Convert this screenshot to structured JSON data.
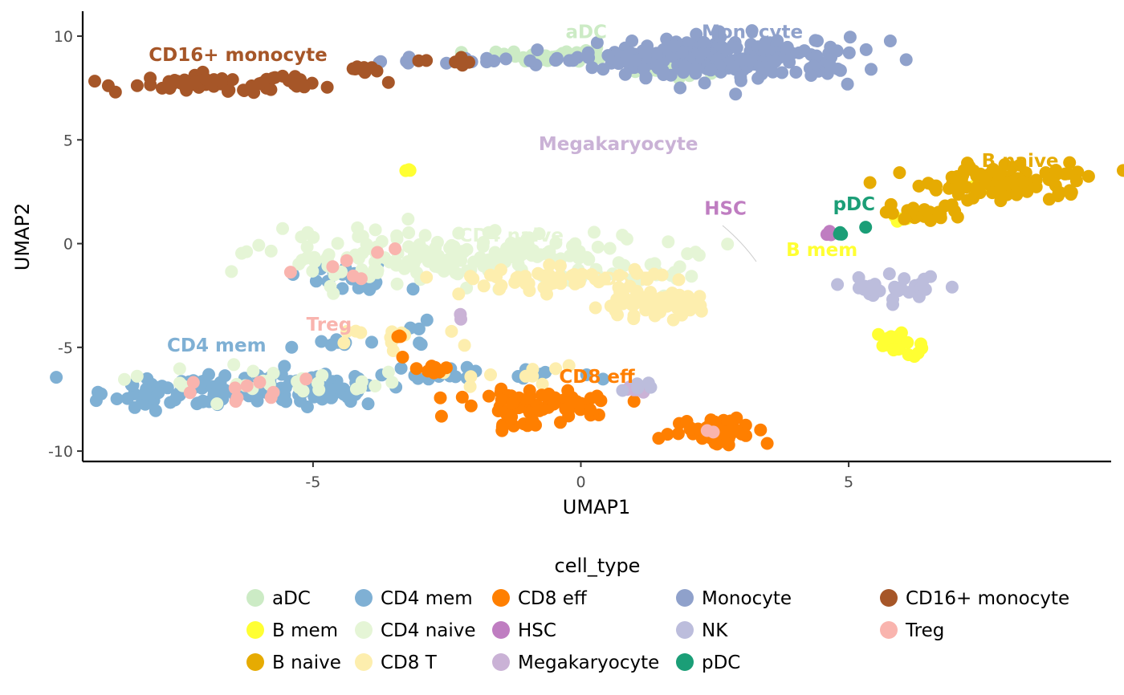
{
  "chart_data": {
    "type": "scatter",
    "title": "",
    "xlabel": "UMAP1",
    "ylabel": "UMAP2",
    "xlim": [
      -9.3,
      9.9
    ],
    "ylim": [
      -10.5,
      11.2
    ],
    "x_ticks": [
      -5,
      0,
      5
    ],
    "y_ticks": [
      10,
      5,
      0,
      -5,
      -10
    ],
    "x_tick_labels": [
      "-5",
      "0",
      "5"
    ],
    "y_tick_labels": [
      "10",
      "5",
      "0",
      "-5",
      "-10"
    ],
    "grid": false,
    "legend": {
      "title": "cell_type",
      "placement": "bottom",
      "columns": 5
    },
    "series": [
      {
        "name": "aDC",
        "color": "#CCEBC5",
        "label_pos": [
          0.1,
          9.9
        ],
        "clusters": [
          {
            "cx": -0.6,
            "cy": 9.0,
            "sx": 0.9,
            "sy": 0.15,
            "n": 40
          },
          {
            "cx": 2.0,
            "cy": 8.3,
            "sx": 0.6,
            "sy": 0.2,
            "n": 15
          }
        ]
      },
      {
        "name": "B mem",
        "color": "#FFFF33",
        "label_pos": [
          4.5,
          -0.6
        ],
        "clusters": [
          {
            "cx": -3.2,
            "cy": 3.6,
            "sx": 0.05,
            "sy": 0.05,
            "n": 3
          },
          {
            "cx": 5.9,
            "cy": -4.8,
            "sx": 0.2,
            "sy": 0.3,
            "n": 20
          },
          {
            "cx": 7.4,
            "cy": 2.7,
            "sx": 0.2,
            "sy": 0.1,
            "n": 6
          },
          {
            "cx": 5.9,
            "cy": 1.1,
            "sx": 0.2,
            "sy": 0.1,
            "n": 5
          }
        ]
      },
      {
        "name": "B naive",
        "color": "#E6AB02",
        "label_pos": [
          8.2,
          3.7
        ],
        "clusters": [
          {
            "cx": 8.0,
            "cy": 3.0,
            "sx": 0.8,
            "sy": 0.45,
            "n": 90
          },
          {
            "cx": 6.5,
            "cy": 1.6,
            "sx": 0.5,
            "sy": 0.25,
            "n": 20
          }
        ]
      },
      {
        "name": "CD4 mem",
        "color": "#7FB0D4",
        "label_pos": [
          -6.8,
          -5.2
        ],
        "clusters": [
          {
            "cx": -6.8,
            "cy": -7.1,
            "sx": 1.1,
            "sy": 0.4,
            "n": 110
          },
          {
            "cx": -4.8,
            "cy": -7.0,
            "sx": 0.6,
            "sy": 0.4,
            "n": 30
          },
          {
            "cx": -4.3,
            "cy": -1.8,
            "sx": 0.45,
            "sy": 0.35,
            "n": 25
          },
          {
            "cx": -2.3,
            "cy": -6.3,
            "sx": 1.0,
            "sy": 0.2,
            "n": 22
          },
          {
            "cx": -4.4,
            "cy": -4.8,
            "sx": 0.4,
            "sy": 0.15,
            "n": 8
          },
          {
            "cx": -3.0,
            "cy": -3.8,
            "sx": 0.3,
            "sy": 0.4,
            "n": 5
          }
        ]
      },
      {
        "name": "CD4 naive",
        "color": "#E5F5D6",
        "label_pos": [
          -1.3,
          0.1
        ],
        "clusters": [
          {
            "cx": -2.5,
            "cy": -0.6,
            "sx": 1.8,
            "sy": 0.6,
            "n": 180
          },
          {
            "cx": -5.5,
            "cy": -6.7,
            "sx": 1.3,
            "sy": 0.4,
            "n": 30
          },
          {
            "cx": 1.0,
            "cy": -1.7,
            "sx": 0.7,
            "sy": 0.35,
            "n": 20
          }
        ]
      },
      {
        "name": "CD8 T",
        "color": "#FDEEAE",
        "label_pos": [
          0.7,
          -2.0
        ],
        "clusters": [
          {
            "cx": 1.2,
            "cy": -2.9,
            "sx": 0.5,
            "sy": 0.3,
            "n": 70
          },
          {
            "cx": -0.5,
            "cy": -1.7,
            "sx": 1.1,
            "sy": 0.3,
            "n": 50
          },
          {
            "cx": -3.3,
            "cy": -4.5,
            "sx": 0.6,
            "sy": 0.2,
            "n": 12
          },
          {
            "cx": -1.5,
            "cy": -6.4,
            "sx": 0.8,
            "sy": 0.3,
            "n": 10
          }
        ]
      },
      {
        "name": "CD8 eff",
        "color": "#FF7F00",
        "label_pos": [
          0.3,
          -6.7
        ],
        "clusters": [
          {
            "cx": -0.7,
            "cy": -7.7,
            "sx": 0.8,
            "sy": 0.35,
            "n": 70
          },
          {
            "cx": 2.6,
            "cy": -9.0,
            "sx": 0.45,
            "sy": 0.35,
            "n": 45
          },
          {
            "cx": -1.3,
            "cy": -8.7,
            "sx": 0.3,
            "sy": 0.25,
            "n": 10
          },
          {
            "cx": -2.8,
            "cy": -5.9,
            "sx": 0.25,
            "sy": 0.2,
            "n": 8
          },
          {
            "cx": -3.4,
            "cy": -4.5,
            "sx": 0.1,
            "sy": 0.1,
            "n": 3
          }
        ]
      },
      {
        "name": "HSC",
        "color": "#BF7DC1",
        "label_pos": [
          2.7,
          1.4
        ],
        "clusters": [
          {
            "cx": 4.7,
            "cy": 0.45,
            "sx": 0.05,
            "sy": 0.05,
            "n": 3
          }
        ]
      },
      {
        "name": "Megakaryocyte",
        "color": "#CAB2D6",
        "label_pos": [
          0.7,
          4.5
        ],
        "clusters": [
          {
            "cx": 0.9,
            "cy": -7.0,
            "sx": 0.15,
            "sy": 0.1,
            "n": 5
          },
          {
            "cx": -2.3,
            "cy": -3.5,
            "sx": 0.1,
            "sy": 0.1,
            "n": 2
          }
        ]
      },
      {
        "name": "Monocyte",
        "color": "#8FA1CB",
        "label_pos": [
          3.2,
          9.9
        ],
        "clusters": [
          {
            "cx": 2.8,
            "cy": 8.9,
            "sx": 1.2,
            "sy": 0.5,
            "n": 220
          },
          {
            "cx": -1.8,
            "cy": 8.8,
            "sx": 1.3,
            "sy": 0.1,
            "n": 18
          },
          {
            "cx": 0.8,
            "cy": 9.0,
            "sx": 0.4,
            "sy": 0.3,
            "n": 14
          }
        ]
      },
      {
        "name": "NK",
        "color": "#BCBDDC",
        "label_pos": [
          6.1,
          -2.5
        ],
        "clusters": [
          {
            "cx": 5.8,
            "cy": -2.2,
            "sx": 0.55,
            "sy": 0.3,
            "n": 30
          },
          {
            "cx": 1.0,
            "cy": -6.9,
            "sx": 0.2,
            "sy": 0.1,
            "n": 5
          }
        ]
      },
      {
        "name": "pDC",
        "color": "#1B9E77",
        "label_pos": [
          5.1,
          1.6
        ],
        "clusters": [
          {
            "cx": 4.9,
            "cy": 0.5,
            "sx": 0.05,
            "sy": 0.05,
            "n": 3
          },
          {
            "cx": 5.3,
            "cy": 0.8,
            "sx": 0.02,
            "sy": 0.02,
            "n": 1
          }
        ]
      },
      {
        "name": "CD16+ monocyte",
        "color": "#A65628",
        "label_pos": [
          -6.4,
          8.8
        ],
        "clusters": [
          {
            "cx": -6.8,
            "cy": 7.7,
            "sx": 0.9,
            "sy": 0.2,
            "n": 70
          },
          {
            "cx": -4.2,
            "cy": 8.4,
            "sx": 0.3,
            "sy": 0.1,
            "n": 8
          },
          {
            "cx": -2.4,
            "cy": 8.8,
            "sx": 0.5,
            "sy": 0.1,
            "n": 6
          }
        ]
      },
      {
        "name": "Treg",
        "color": "#F9B4AE",
        "label_pos": [
          -4.7,
          -4.2
        ],
        "clusters": [
          {
            "cx": -6.2,
            "cy": -7.0,
            "sx": 1.0,
            "sy": 0.35,
            "n": 10
          },
          {
            "cx": -4.4,
            "cy": -1.5,
            "sx": 0.4,
            "sy": 0.3,
            "n": 5
          },
          {
            "cx": -3.5,
            "cy": -0.5,
            "sx": 0.1,
            "sy": 0.1,
            "n": 2
          },
          {
            "cx": 2.4,
            "cy": -9.1,
            "sx": 0.1,
            "sy": 0.1,
            "n": 2
          }
        ]
      }
    ]
  }
}
